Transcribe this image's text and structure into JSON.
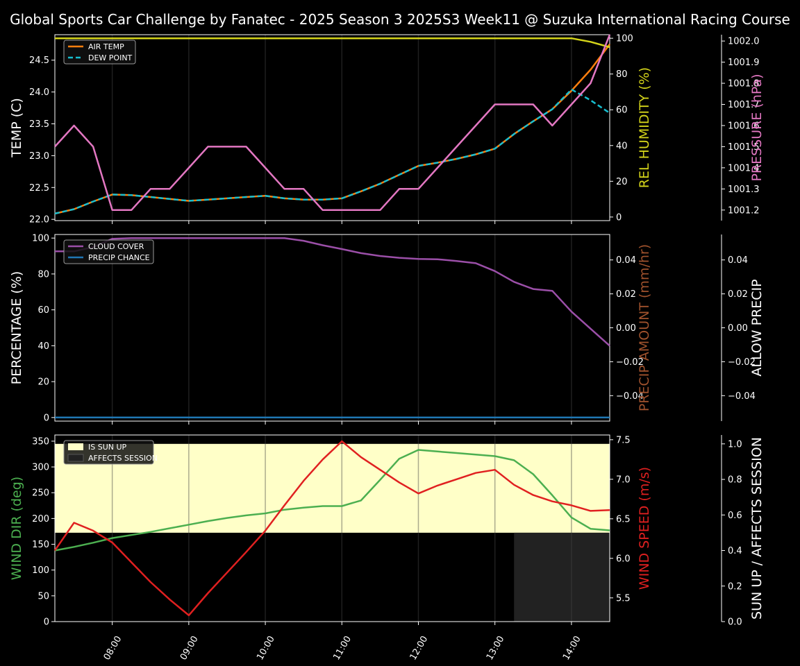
{
  "title": "Global Sports Car Challenge by Fanatec - 2025 Season 3 2025S3 Week11 @ Suzuka International Racing Course",
  "colors": {
    "air_temp": "#ff7f0e",
    "dew_point": "#17becf",
    "humidity": "#d4d41a",
    "pressure": "#e377c2",
    "cloud": "#9b4fa8",
    "precip_chance": "#1f77b4",
    "precip_amount": "#a0522d",
    "wind_dir": "#4caf50",
    "wind_speed": "#e02020",
    "sun_up": "#ffffc8",
    "affects": "#222222"
  },
  "chart_data": [
    {
      "type": "line",
      "panel": "weather",
      "x": [
        "07:15",
        "07:30",
        "07:45",
        "08:00",
        "08:15",
        "08:30",
        "08:45",
        "09:00",
        "09:15",
        "09:30",
        "09:45",
        "10:00",
        "10:15",
        "10:30",
        "10:45",
        "11:00",
        "11:15",
        "11:30",
        "11:45",
        "12:00",
        "12:15",
        "12:30",
        "12:45",
        "13:00",
        "13:15",
        "13:30",
        "13:45",
        "14:00",
        "14:15",
        "14:30"
      ],
      "ylabel": "TEMP (C)",
      "ylabel_right": "REL HUMIDITY (%)",
      "ylabel_far_right": "PRESSURE (hPa)",
      "ylim": [
        21.98,
        24.9
      ],
      "ylim_right": [
        -2,
        102
      ],
      "ylim_far_right": [
        1001.15,
        1002.03
      ],
      "yticks": [
        "22.0",
        "22.5",
        "23.0",
        "23.5",
        "24.0",
        "24.5"
      ],
      "yticks_right": [
        "0",
        "20",
        "40",
        "60",
        "80",
        "100"
      ],
      "yticks_far_right": [
        "1001.2",
        "1001.3",
        "1001.4",
        "1001.5",
        "1001.6",
        "1001.7",
        "1001.8",
        "1001.9",
        "1002.0"
      ],
      "legend": [
        "AIR TEMP",
        "DEW POINT"
      ],
      "legend_position": "top-left",
      "series": [
        {
          "name": "AIR TEMP",
          "axis": "left",
          "values": [
            22.09,
            22.16,
            22.28,
            22.39,
            22.38,
            22.35,
            22.32,
            22.29,
            22.31,
            22.33,
            22.35,
            22.37,
            22.33,
            22.31,
            22.31,
            22.33,
            22.44,
            22.56,
            22.7,
            22.84,
            22.89,
            22.95,
            23.02,
            23.11,
            23.34,
            23.54,
            23.73,
            24.02,
            24.35,
            24.75
          ]
        },
        {
          "name": "DEW POINT",
          "axis": "left",
          "values": [
            22.09,
            22.16,
            22.28,
            22.39,
            22.38,
            22.35,
            22.32,
            22.29,
            22.31,
            22.33,
            22.35,
            22.37,
            22.33,
            22.31,
            22.31,
            22.33,
            22.44,
            22.56,
            22.7,
            22.84,
            22.89,
            22.95,
            23.02,
            23.11,
            23.34,
            23.54,
            23.73,
            24.04,
            23.87,
            23.67
          ]
        },
        {
          "name": "REL HUMIDITY",
          "axis": "right",
          "values": [
            100,
            100,
            100,
            100,
            100,
            100,
            100,
            100,
            100,
            100,
            100,
            100,
            100,
            100,
            100,
            100,
            100,
            100,
            100,
            100,
            100,
            100,
            100,
            100,
            100,
            100,
            100,
            100,
            98,
            95
          ]
        },
        {
          "name": "PRESSURE",
          "axis": "far_right",
          "values": [
            1001.5,
            1001.6,
            1001.5,
            1001.2,
            1001.2,
            1001.3,
            1001.3,
            1001.4,
            1001.5,
            1001.5,
            1001.5,
            1001.4,
            1001.3,
            1001.3,
            1001.2,
            1001.2,
            1001.2,
            1001.2,
            1001.3,
            1001.3,
            1001.4,
            1001.5,
            1001.6,
            1001.7,
            1001.7,
            1001.7,
            1001.6,
            1001.7,
            1001.8,
            1002.03
          ]
        }
      ]
    },
    {
      "type": "line",
      "panel": "clouds",
      "x": [
        "07:15",
        "07:30",
        "07:45",
        "08:00",
        "08:15",
        "08:30",
        "08:45",
        "09:00",
        "09:15",
        "09:30",
        "09:45",
        "10:00",
        "10:15",
        "10:30",
        "10:45",
        "11:00",
        "11:15",
        "11:30",
        "11:45",
        "12:00",
        "12:15",
        "12:30",
        "12:45",
        "13:00",
        "13:15",
        "13:30",
        "13:45",
        "14:00",
        "14:15",
        "14:30"
      ],
      "ylabel": "PERCENTAGE (%)",
      "ylabel_right": "PRECIP AMOUNT (mm/hr)",
      "ylabel_far_right": "ALLOW PRECIP",
      "ylim": [
        -2,
        102
      ],
      "ylim_right": [
        -0.055,
        0.055
      ],
      "ylim_far_right": [
        -0.055,
        0.055
      ],
      "yticks": [
        "0",
        "20",
        "40",
        "60",
        "80",
        "100"
      ],
      "yticks_right": [
        "−0.04",
        "−0.02",
        "0.00",
        "0.02",
        "0.04"
      ],
      "yticks_far_right": [
        "−0.04",
        "−0.02",
        "0.00",
        "0.02",
        "0.04"
      ],
      "legend": [
        "CLOUD COVER",
        "PRECIP CHANCE"
      ],
      "legend_position": "top-left",
      "series": [
        {
          "name": "CLOUD COVER",
          "axis": "left",
          "values": [
            92.6,
            92.6,
            95,
            99.6,
            100,
            100,
            100,
            100,
            100,
            100,
            100,
            100,
            100,
            98.5,
            96,
            93.9,
            91.6,
            90,
            89,
            88.4,
            88.2,
            87.2,
            86,
            81.6,
            75.6,
            71.6,
            70.6,
            59,
            49.5,
            40
          ]
        },
        {
          "name": "PRECIP CHANCE",
          "axis": "left",
          "values": [
            0,
            0,
            0,
            0,
            0,
            0,
            0,
            0,
            0,
            0,
            0,
            0,
            0,
            0,
            0,
            0,
            0,
            0,
            0,
            0,
            0,
            0,
            0,
            0,
            0,
            0,
            0,
            0,
            0,
            0
          ]
        }
      ]
    },
    {
      "type": "line",
      "panel": "wind",
      "x": [
        "07:15",
        "07:30",
        "07:45",
        "08:00",
        "08:15",
        "08:30",
        "08:45",
        "09:00",
        "09:15",
        "09:30",
        "09:45",
        "10:00",
        "10:15",
        "10:30",
        "10:45",
        "11:00",
        "11:15",
        "11:30",
        "11:45",
        "12:00",
        "12:15",
        "12:30",
        "12:45",
        "13:00",
        "13:15",
        "13:30",
        "13:45",
        "14:00",
        "14:15",
        "14:30"
      ],
      "xticks": [
        "08:00",
        "09:00",
        "10:00",
        "11:00",
        "12:00",
        "13:00",
        "14:00"
      ],
      "ylabel": "WIND DIR (deg)",
      "ylabel_right": "WIND SPEED (m/s)",
      "ylabel_far_right": "SUN UP / AFFECTS SESSION",
      "ylim": [
        0,
        362
      ],
      "ylim_right": [
        5.2,
        7.56
      ],
      "ylim_far_right": [
        0,
        1.05
      ],
      "yticks": [
        "0",
        "50",
        "100",
        "150",
        "200",
        "250",
        "300",
        "350"
      ],
      "yticks_right": [
        "5.5",
        "6.0",
        "6.5",
        "7.0",
        "7.5"
      ],
      "yticks_far_right": [
        "0.0",
        "0.2",
        "0.4",
        "0.6",
        "0.8",
        "1.0"
      ],
      "legend": [
        "IS SUN UP",
        "AFFECTS SESSION"
      ],
      "legend_position": "top-left",
      "is_sun_up": {
        "from": "07:15",
        "to": "14:30",
        "value": 1
      },
      "affects_session": {
        "from": "13:15",
        "to": "14:30",
        "value": 1
      },
      "series": [
        {
          "name": "WIND DIR",
          "axis": "left",
          "values": [
            138,
            145,
            153,
            162,
            168,
            174,
            181,
            188,
            195,
            201,
            206,
            210,
            217,
            221,
            224,
            224,
            235,
            275,
            316,
            333,
            330,
            327,
            324,
            321,
            313,
            286,
            245,
            202,
            180,
            177
          ]
        },
        {
          "name": "WIND SPEED",
          "axis": "right",
          "values": [
            6.1,
            6.45,
            6.35,
            6.2,
            5.95,
            5.7,
            5.48,
            5.28,
            5.56,
            5.82,
            6.08,
            6.35,
            6.67,
            6.98,
            7.25,
            7.48,
            7.28,
            7.12,
            6.96,
            6.82,
            6.92,
            7.0,
            7.08,
            7.12,
            6.93,
            6.8,
            6.72,
            6.67,
            6.6,
            6.61
          ]
        }
      ]
    }
  ]
}
